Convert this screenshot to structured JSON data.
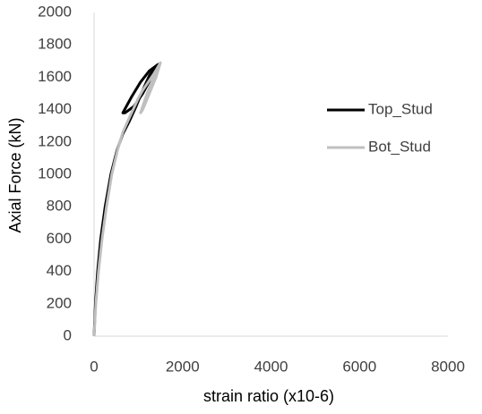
{
  "chart_data": {
    "type": "line",
    "x_label": "strain ratio (x10-6)",
    "y_label": "Axial Force (kN)",
    "xlim": [
      0,
      8000
    ],
    "xticks": [
      0,
      2000,
      4000,
      6000,
      8000
    ],
    "ylim": [
      0,
      2000
    ],
    "yticks": [
      0,
      200,
      400,
      600,
      800,
      1000,
      1200,
      1400,
      1600,
      1800,
      2000
    ],
    "grid": false,
    "legend": "right",
    "series": [
      {
        "name": "Top_Stud",
        "color": "#000000",
        "x": [
          0,
          30,
          80,
          150,
          250,
          380,
          520,
          650,
          800,
          950,
          1100,
          1250,
          1400,
          1450,
          1300,
          1100,
          900,
          700,
          650,
          850,
          1050,
          1250,
          1450
        ],
        "values": [
          0,
          200,
          400,
          600,
          800,
          1000,
          1150,
          1250,
          1330,
          1420,
          1520,
          1610,
          1670,
          1680,
          1600,
          1500,
          1420,
          1380,
          1380,
          1480,
          1570,
          1640,
          1680
        ]
      },
      {
        "name": "Bot_Stud",
        "color": "#bfbfbf",
        "x": [
          0,
          40,
          100,
          180,
          280,
          400,
          530,
          650,
          780,
          900,
          1000,
          1100,
          1200,
          1350,
          1500,
          1400,
          1250,
          1100,
          1050,
          1200,
          1350,
          1500
        ],
        "values": [
          0,
          200,
          400,
          600,
          800,
          1000,
          1150,
          1260,
          1340,
          1410,
          1470,
          1520,
          1560,
          1620,
          1690,
          1600,
          1500,
          1400,
          1380,
          1500,
          1600,
          1690
        ]
      }
    ]
  }
}
